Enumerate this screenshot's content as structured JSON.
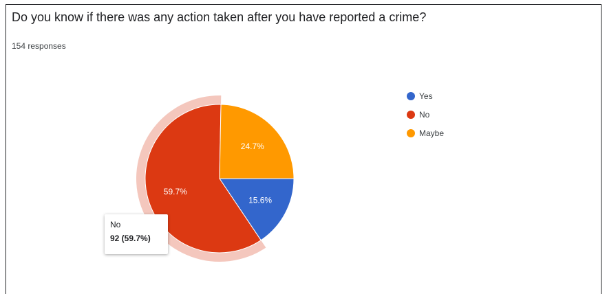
{
  "question": "Do you know if there was any action taken after you have reported a crime?",
  "responses_label": "154 responses",
  "chart_data": {
    "type": "pie",
    "slices": [
      {
        "name": "Yes",
        "value": 15.6,
        "label": "15.6%",
        "color": "#3366cc"
      },
      {
        "name": "No",
        "value": 59.7,
        "label": "59.7%",
        "color": "#dc3912"
      },
      {
        "name": "Maybe",
        "value": 24.7,
        "label": "24.7%",
        "color": "#ff9900"
      }
    ],
    "legend_position": "right",
    "highlighted": "No"
  },
  "tooltip": {
    "name": "No",
    "value": "92 (59.7%)"
  }
}
